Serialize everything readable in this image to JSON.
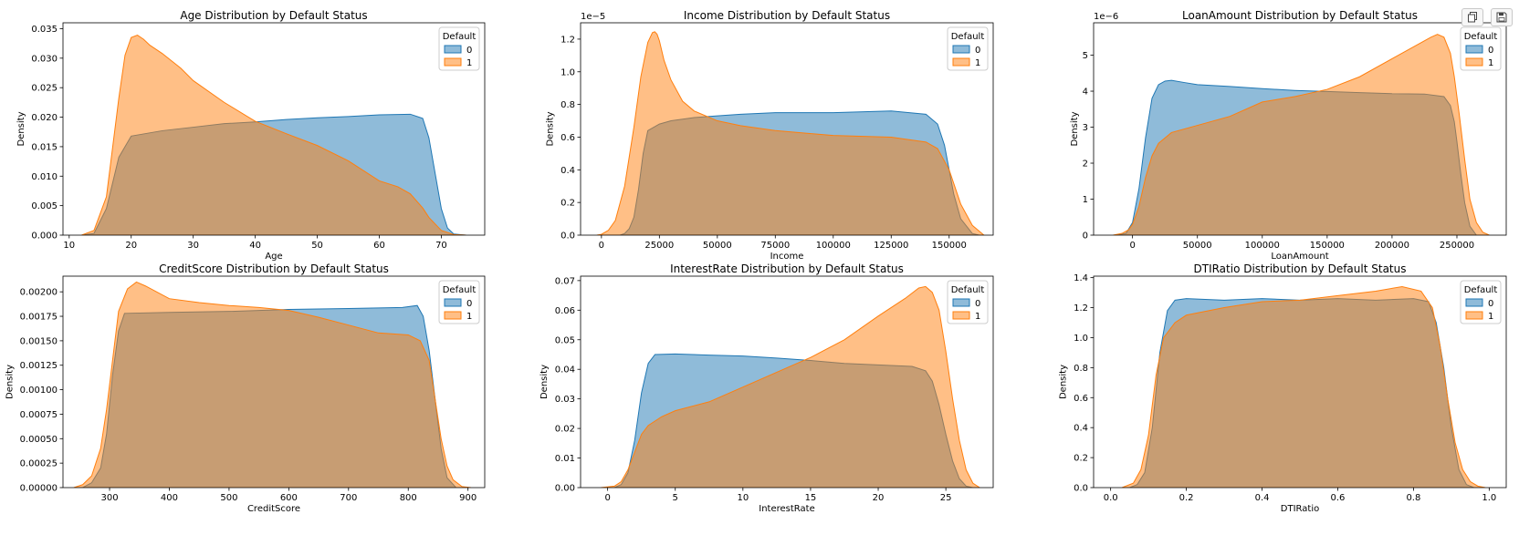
{
  "toolbar": {
    "copy_icon": "copy-icon",
    "save_icon": "save-icon"
  },
  "colors": {
    "class0": "#1f77b4",
    "class1": "#ff7f0e",
    "overlap": "#8d959b",
    "axis": "#000000"
  },
  "chart_data": [
    {
      "type": "area",
      "title": "Age Distribution by Default Status",
      "xlabel": "Age",
      "ylabel": "Density",
      "xlim": [
        9,
        77
      ],
      "ylim": [
        0,
        0.036
      ],
      "xticks": [
        10,
        20,
        30,
        40,
        50,
        60,
        70
      ],
      "yticks": [
        0,
        0.005,
        0.01,
        0.015,
        0.02,
        0.025,
        0.03,
        0.035
      ],
      "ytick_labels": [
        "0.000",
        "0.005",
        "0.010",
        "0.015",
        "0.020",
        "0.025",
        "0.030",
        "0.035"
      ],
      "offset_label": "",
      "legend": {
        "title": "Default",
        "entries": [
          "0",
          "1"
        ],
        "placement": "top-right"
      },
      "series": [
        {
          "name": "0",
          "x": [
            12,
            14,
            16,
            18,
            20,
            25,
            30,
            35,
            40,
            45,
            50,
            55,
            60,
            65,
            67,
            68,
            69,
            70,
            71,
            72,
            74
          ],
          "y": [
            0,
            0.0003,
            0.0045,
            0.0132,
            0.0168,
            0.0177,
            0.0183,
            0.0189,
            0.0192,
            0.0196,
            0.0199,
            0.0201,
            0.0204,
            0.0205,
            0.0198,
            0.0165,
            0.0105,
            0.0045,
            0.0012,
            0.0002,
            0
          ]
        },
        {
          "name": "1",
          "x": [
            12,
            14,
            16,
            18,
            19,
            20,
            21,
            22,
            23,
            25,
            28,
            30,
            35,
            40,
            45,
            50,
            55,
            60,
            63,
            65,
            67,
            68,
            70,
            72,
            74
          ],
          "y": [
            0,
            0.0008,
            0.0065,
            0.0232,
            0.0305,
            0.0335,
            0.0339,
            0.0332,
            0.0322,
            0.0308,
            0.0283,
            0.0262,
            0.0225,
            0.0193,
            0.0172,
            0.0152,
            0.0126,
            0.0092,
            0.0082,
            0.007,
            0.0046,
            0.003,
            0.0008,
            0.0001,
            0
          ]
        }
      ]
    },
    {
      "type": "area",
      "title": "Income Distribution by Default Status",
      "xlabel": "Income",
      "ylabel": "Density",
      "xlim": [
        -9000,
        169000
      ],
      "ylim": [
        0,
        1.3
      ],
      "xticks": [
        0,
        25000,
        50000,
        75000,
        100000,
        125000,
        150000
      ],
      "yticks": [
        0,
        0.2,
        0.4,
        0.6,
        0.8,
        1.0,
        1.2
      ],
      "ytick_labels": [
        "0.0",
        "0.2",
        "0.4",
        "0.6",
        "0.8",
        "1.0",
        "1.2"
      ],
      "offset_label": "1e−5",
      "legend": {
        "title": "Default",
        "entries": [
          "0",
          "1"
        ],
        "placement": "top-right"
      },
      "series": [
        {
          "name": "0",
          "x": [
            8000,
            10000,
            12000,
            14000,
            16000,
            18000,
            20000,
            25000,
            30000,
            40000,
            50000,
            60000,
            75000,
            100000,
            125000,
            140000,
            145000,
            148000,
            150000,
            152000,
            155000,
            160000,
            163000
          ],
          "y": [
            0,
            0.01,
            0.04,
            0.11,
            0.28,
            0.5,
            0.64,
            0.68,
            0.7,
            0.72,
            0.73,
            0.74,
            0.75,
            0.75,
            0.76,
            0.74,
            0.68,
            0.55,
            0.4,
            0.25,
            0.1,
            0.01,
            0
          ]
        },
        {
          "name": "1",
          "x": [
            -2000,
            0,
            3000,
            6000,
            10000,
            14000,
            17000,
            20000,
            22000,
            23000,
            24000,
            25000,
            27000,
            30000,
            35000,
            40000,
            50000,
            60000,
            75000,
            100000,
            125000,
            140000,
            145000,
            150000,
            155000,
            160000,
            165000
          ],
          "y": [
            0,
            0.005,
            0.03,
            0.09,
            0.3,
            0.66,
            0.97,
            1.18,
            1.24,
            1.245,
            1.23,
            1.19,
            1.07,
            0.95,
            0.82,
            0.76,
            0.7,
            0.67,
            0.64,
            0.61,
            0.6,
            0.57,
            0.53,
            0.4,
            0.19,
            0.06,
            0
          ]
        }
      ]
    },
    {
      "type": "area",
      "title": "LoanAmount Distribution by Default Status",
      "xlabel": "LoanAmount",
      "ylabel": "Density",
      "xlim": [
        -30000,
        288000
      ],
      "ylim": [
        0,
        5.9
      ],
      "xticks": [
        0,
        50000,
        100000,
        150000,
        200000,
        250000
      ],
      "yticks": [
        0,
        1,
        2,
        3,
        4,
        5
      ],
      "ytick_labels": [
        "0",
        "1",
        "2",
        "3",
        "4",
        "5"
      ],
      "offset_label": "1e−6",
      "legend": {
        "title": "Default",
        "entries": [
          "0",
          "1"
        ],
        "placement": "top-right"
      },
      "series": [
        {
          "name": "0",
          "x": [
            -12000,
            -5000,
            0,
            5000,
            10000,
            15000,
            20000,
            25000,
            30000,
            40000,
            50000,
            75000,
            100000,
            125000,
            150000,
            175000,
            200000,
            225000,
            240000,
            245000,
            248000,
            250000,
            253000,
            256000,
            260000,
            265000
          ],
          "y": [
            0,
            0.05,
            0.35,
            1.3,
            2.7,
            3.8,
            4.18,
            4.28,
            4.3,
            4.24,
            4.18,
            4.13,
            4.07,
            4.02,
            3.99,
            3.96,
            3.93,
            3.92,
            3.85,
            3.6,
            3.15,
            2.6,
            1.7,
            0.9,
            0.25,
            0
          ]
        },
        {
          "name": "1",
          "x": [
            -15000,
            -8000,
            -3000,
            0,
            5000,
            10000,
            15000,
            20000,
            30000,
            50000,
            75000,
            100000,
            125000,
            150000,
            175000,
            200000,
            220000,
            230000,
            235000,
            240000,
            245000,
            248000,
            252000,
            256000,
            260000,
            265000,
            270000,
            275000
          ],
          "y": [
            0,
            0.05,
            0.15,
            0.3,
            0.8,
            1.6,
            2.2,
            2.55,
            2.85,
            3.05,
            3.3,
            3.7,
            3.85,
            4.05,
            4.4,
            4.9,
            5.3,
            5.5,
            5.58,
            5.5,
            5.05,
            4.4,
            3.3,
            2.1,
            1.0,
            0.35,
            0.08,
            0
          ]
        }
      ]
    },
    {
      "type": "area",
      "title": "CreditScore Distribution by Default Status",
      "xlabel": "CreditScore",
      "ylabel": "Density",
      "xlim": [
        222,
        928
      ],
      "ylim": [
        0,
        0.00216
      ],
      "xticks": [
        300,
        400,
        500,
        600,
        700,
        800,
        900
      ],
      "yticks": [
        0,
        0.00025,
        0.0005,
        0.00075,
        0.001,
        0.00125,
        0.0015,
        0.00175,
        0.002
      ],
      "ytick_labels": [
        "0.00000",
        "0.00025",
        "0.00050",
        "0.00075",
        "0.00100",
        "0.00125",
        "0.00150",
        "0.00175",
        "0.00200"
      ],
      "offset_label": "",
      "legend": {
        "title": "Default",
        "entries": [
          "0",
          "1"
        ],
        "placement": "top-right"
      },
      "series": [
        {
          "name": "0",
          "x": [
            255,
            270,
            285,
            295,
            305,
            315,
            325,
            400,
            500,
            600,
            700,
            790,
            815,
            825,
            835,
            845,
            855,
            865,
            880
          ],
          "y": [
            0,
            5e-05,
            0.0002,
            0.00055,
            0.00115,
            0.0016,
            0.00178,
            0.00179,
            0.0018,
            0.00182,
            0.00183,
            0.00184,
            0.00186,
            0.00175,
            0.0014,
            0.0009,
            0.0004,
            0.0001,
            0
          ]
        },
        {
          "name": "1",
          "x": [
            240,
            255,
            270,
            285,
            295,
            305,
            315,
            330,
            345,
            360,
            400,
            450,
            500,
            550,
            600,
            650,
            700,
            750,
            800,
            820,
            835,
            845,
            855,
            865,
            875,
            890,
            905
          ],
          "y": [
            0,
            3e-05,
            0.00012,
            0.0004,
            0.0008,
            0.0013,
            0.0018,
            0.00203,
            0.0021,
            0.00206,
            0.00193,
            0.00189,
            0.00186,
            0.00184,
            0.00181,
            0.00174,
            0.00166,
            0.00158,
            0.00156,
            0.0015,
            0.0013,
            0.0009,
            0.0005,
            0.00022,
            8e-05,
            1e-05,
            0
          ]
        }
      ]
    },
    {
      "type": "area",
      "title": "InterestRate Distribution by Default Status",
      "xlabel": "InterestRate",
      "ylabel": "Density",
      "xlim": [
        -2,
        28.5
      ],
      "ylim": [
        0,
        0.0715
      ],
      "xticks": [
        0,
        5,
        10,
        15,
        20,
        25
      ],
      "yticks": [
        0,
        0.01,
        0.02,
        0.03,
        0.04,
        0.05,
        0.06,
        0.07
      ],
      "ytick_labels": [
        "0.00",
        "0.01",
        "0.02",
        "0.03",
        "0.04",
        "0.05",
        "0.06",
        "0.07"
      ],
      "offset_label": "",
      "legend": {
        "title": "Default",
        "entries": [
          "0",
          "1"
        ],
        "placement": "top-right"
      },
      "series": [
        {
          "name": "0",
          "x": [
            0.5,
            1,
            1.5,
            2,
            2.5,
            3,
            3.5,
            5,
            7.5,
            10,
            12.5,
            15,
            17.5,
            20,
            22.5,
            23.5,
            24,
            24.5,
            25,
            25.5,
            26,
            26.5,
            27
          ],
          "y": [
            0,
            0.001,
            0.005,
            0.016,
            0.032,
            0.042,
            0.045,
            0.0452,
            0.0448,
            0.0445,
            0.0438,
            0.043,
            0.042,
            0.0415,
            0.041,
            0.0395,
            0.036,
            0.028,
            0.018,
            0.009,
            0.003,
            0.0005,
            0
          ]
        },
        {
          "name": "1",
          "x": [
            -0.5,
            0.5,
            1,
            1.5,
            2,
            2.5,
            3,
            4,
            5,
            7.5,
            10,
            12.5,
            15,
            17.5,
            20,
            22,
            23,
            23.5,
            24,
            24.5,
            25,
            25.5,
            26,
            26.5,
            27,
            27.5
          ],
          "y": [
            0,
            0.0005,
            0.002,
            0.006,
            0.012,
            0.018,
            0.021,
            0.024,
            0.026,
            0.029,
            0.034,
            0.039,
            0.044,
            0.05,
            0.058,
            0.064,
            0.0675,
            0.068,
            0.066,
            0.06,
            0.046,
            0.03,
            0.016,
            0.006,
            0.0015,
            0
          ]
        }
      ]
    },
    {
      "type": "area",
      "title": "DTIRatio Distribution by Default Status",
      "xlabel": "DTIRatio",
      "ylabel": "Density",
      "xlim": [
        -0.045,
        1.045
      ],
      "ylim": [
        0,
        1.41
      ],
      "xticks": [
        0,
        0.2,
        0.4,
        0.6,
        0.8,
        1.0
      ],
      "yticks": [
        0,
        0.2,
        0.4,
        0.6,
        0.8,
        1.0,
        1.2,
        1.4
      ],
      "ytick_labels": [
        "0.0",
        "0.2",
        "0.4",
        "0.6",
        "0.8",
        "1.0",
        "1.2",
        "1.4"
      ],
      "xtick_labels": [
        "0.0",
        "0.2",
        "0.4",
        "0.6",
        "0.8",
        "1.0"
      ],
      "offset_label": "",
      "legend": {
        "title": "Default",
        "entries": [
          "0",
          "1"
        ],
        "placement": "top-right"
      },
      "series": [
        {
          "name": "0",
          "x": [
            0.05,
            0.07,
            0.09,
            0.11,
            0.13,
            0.15,
            0.17,
            0.2,
            0.3,
            0.4,
            0.5,
            0.6,
            0.7,
            0.8,
            0.84,
            0.86,
            0.88,
            0.9,
            0.92,
            0.94,
            0.96
          ],
          "y": [
            0,
            0.02,
            0.1,
            0.4,
            0.9,
            1.18,
            1.25,
            1.26,
            1.25,
            1.26,
            1.25,
            1.26,
            1.25,
            1.26,
            1.24,
            1.1,
            0.8,
            0.4,
            0.12,
            0.02,
            0
          ]
        },
        {
          "name": "1",
          "x": [
            0.03,
            0.06,
            0.08,
            0.1,
            0.12,
            0.14,
            0.17,
            0.2,
            0.3,
            0.4,
            0.5,
            0.6,
            0.7,
            0.77,
            0.82,
            0.85,
            0.87,
            0.89,
            0.91,
            0.93,
            0.95,
            0.97,
            0.99
          ],
          "y": [
            0,
            0.03,
            0.12,
            0.35,
            0.75,
            1.0,
            1.1,
            1.15,
            1.2,
            1.24,
            1.25,
            1.28,
            1.31,
            1.34,
            1.31,
            1.2,
            0.95,
            0.6,
            0.3,
            0.12,
            0.04,
            0.01,
            0
          ]
        }
      ]
    }
  ]
}
